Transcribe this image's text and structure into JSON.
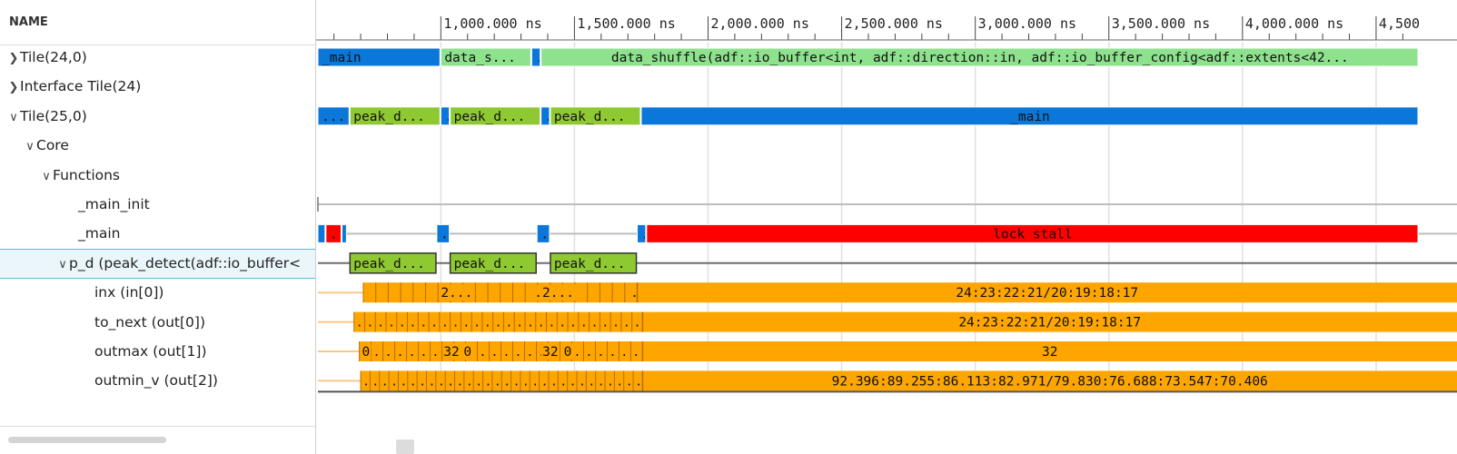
{
  "name_panel": {
    "header": "NAME",
    "rows": [
      {
        "label": "Tile(24,0)",
        "chevron": "right",
        "depth": 0
      },
      {
        "label": "Interface Tile(24)",
        "chevron": "right",
        "depth": 0
      },
      {
        "label": "Tile(25,0)",
        "chevron": "down",
        "depth": 0
      },
      {
        "label": "Core",
        "chevron": "down",
        "depth": 1
      },
      {
        "label": "Functions",
        "chevron": "down",
        "depth": 2
      },
      {
        "label": "_main_init",
        "chevron": "none",
        "depth": 3
      },
      {
        "label": "_main",
        "chevron": "none",
        "depth": 3
      },
      {
        "label": "p_d (peak_detect(adf::io_buffer<",
        "chevron": "down",
        "depth": 3,
        "selected": true
      },
      {
        "label": "inx (in[0])",
        "chevron": "none",
        "depth": 4
      },
      {
        "label": "to_next (out[0])",
        "chevron": "none",
        "depth": 4
      },
      {
        "label": "outmax (out[1])",
        "chevron": "none",
        "depth": 4
      },
      {
        "label": "outmin_v (out[2])",
        "chevron": "none",
        "depth": 4
      }
    ]
  },
  "time_axis": {
    "ticks": [
      {
        "t": 1000,
        "label": "1,000.000 ns"
      },
      {
        "t": 1500,
        "label": "1,500.000 ns"
      },
      {
        "t": 2000,
        "label": "2,000.000 ns"
      },
      {
        "t": 2500,
        "label": "2,500.000 ns"
      },
      {
        "t": 3000,
        "label": "3,000.000 ns"
      },
      {
        "t": 3500,
        "label": "3,500.000 ns"
      },
      {
        "t": 4000,
        "label": "4,000.000 ns"
      },
      {
        "t": 4500,
        "label": "4,500"
      }
    ],
    "view_start_ns": 540,
    "view_end_ns": 4660
  },
  "colors": {
    "main": "#0b77d9",
    "data_shuffle": "#8ee28e",
    "peak_detect": "#8fc932",
    "lock_stall": "#ff0000",
    "buffer": "#ffa500",
    "idle_line": "#bdbdbd",
    "stub_line": "#f8c98b",
    "grid": "#e0e0e0"
  },
  "tracks": [
    {
      "row": 0,
      "kind": "blocks",
      "blocks": [
        {
          "start": 540,
          "end": 1000,
          "color": "main",
          "label": "_main"
        },
        {
          "start": 1000,
          "end": 1340,
          "color": "data_shuffle",
          "label": "data_s..."
        },
        {
          "start": 1340,
          "end": 1375,
          "color": "main",
          "label": "."
        },
        {
          "start": 1375,
          "end": 4660,
          "color": "data_shuffle",
          "label": "data_shuffle(adf::io_buffer<int, adf::direction::in, adf::io_buffer_config<adf::extents<42..."
        }
      ]
    },
    {
      "row": 2,
      "kind": "blocks",
      "blocks": [
        {
          "start": 540,
          "end": 660,
          "color": "main",
          "label": "..."
        },
        {
          "start": 660,
          "end": 1000,
          "color": "peak_detect",
          "label": "peak_d..."
        },
        {
          "start": 1000,
          "end": 1035,
          "color": "main",
          "label": "."
        },
        {
          "start": 1035,
          "end": 1375,
          "color": "peak_detect",
          "label": "peak_d..."
        },
        {
          "start": 1375,
          "end": 1410,
          "color": "main",
          "label": "."
        },
        {
          "start": 1410,
          "end": 1750,
          "color": "peak_detect",
          "label": "peak_d..."
        },
        {
          "start": 1750,
          "end": 4660,
          "color": "main",
          "label": "_main"
        }
      ]
    },
    {
      "row": 5,
      "kind": "line"
    },
    {
      "row": 6,
      "kind": "blocks",
      "baseline": true,
      "blocks": [
        {
          "start": 540,
          "end": 570,
          "color": "main",
          "label": ""
        },
        {
          "start": 570,
          "end": 630,
          "color": "lock_stall",
          "label": "."
        },
        {
          "start": 630,
          "end": 650,
          "color": "main",
          "label": ""
        },
        {
          "start": 985,
          "end": 1035,
          "color": "main",
          "label": "."
        },
        {
          "start": 1360,
          "end": 1410,
          "color": "main",
          "label": "."
        },
        {
          "start": 1735,
          "end": 1770,
          "color": "main",
          "label": "."
        },
        {
          "start": 1770,
          "end": 4660,
          "color": "lock_stall",
          "label": "lock stall"
        }
      ]
    },
    {
      "row": 7,
      "kind": "blocks",
      "baseline": true,
      "outlined": true,
      "blocks": [
        {
          "start": 660,
          "end": 985,
          "color": "peak_detect",
          "label": "peak_d..."
        },
        {
          "start": 1035,
          "end": 1360,
          "color": "peak_detect",
          "label": "peak_d..."
        },
        {
          "start": 1410,
          "end": 1735,
          "color": "peak_detect",
          "label": "peak_d..."
        }
      ]
    },
    {
      "row": 8,
      "kind": "buffer",
      "stub_start": 540,
      "start": 710,
      "segments": 22,
      "seg_end": 1735,
      "labels": [
        {
          "t": 1000,
          "text": "2..."
        },
        {
          "t": 1350,
          "text": ".2..."
        },
        {
          "t": 1710,
          "text": "."
        }
      ],
      "tail_label": "24:23:22:21/20:19:18:17"
    },
    {
      "row": 9,
      "kind": "buffer",
      "stub_start": 540,
      "start": 675,
      "segments": 27,
      "seg_end": 1755,
      "labels": [],
      "dot_fill": true,
      "tail_label": "24:23:22:21/20:19:18:17"
    },
    {
      "row": 10,
      "kind": "buffer",
      "stub_start": 540,
      "start": 695,
      "segments": 24,
      "seg_end": 1755,
      "labels": [
        {
          "t": 705,
          "text": "0"
        },
        {
          "t": 1010,
          "text": "32"
        },
        {
          "t": 1085,
          "text": "0"
        },
        {
          "t": 1380,
          "text": "32"
        },
        {
          "t": 1460,
          "text": "0"
        }
      ],
      "dot_fill": true,
      "tail_label": "32"
    },
    {
      "row": 11,
      "kind": "buffer",
      "stub_start": 540,
      "start": 700,
      "segments": 30,
      "seg_end": 1755,
      "labels": [],
      "dot_fill": true,
      "underline": true,
      "tail_label": "92.396:89.255:86.113:82.971/79.830:76.688:73.547:70.406"
    }
  ]
}
